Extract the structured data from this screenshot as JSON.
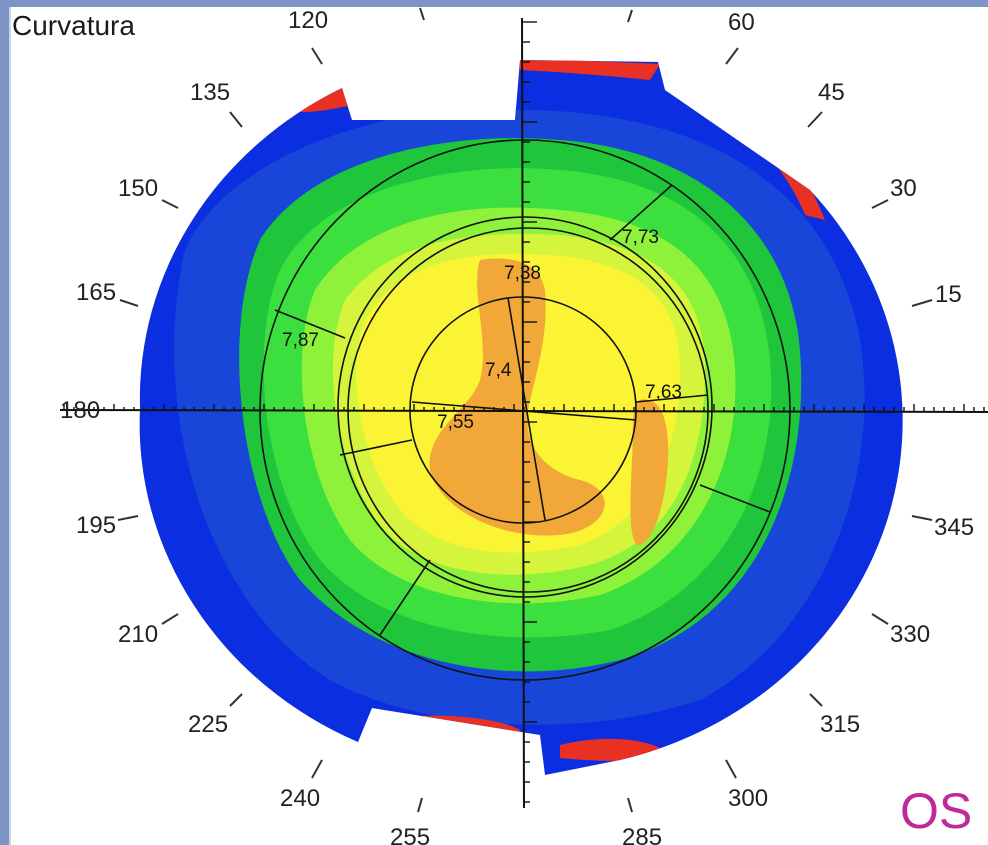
{
  "header": {
    "title": "Curvatura"
  },
  "eye_label": "OS",
  "angle_labels": [
    "120",
    "60",
    "135",
    "45",
    "150",
    "30",
    "165",
    "15",
    "180",
    "195",
    "345",
    "210",
    "330",
    "225",
    "315",
    "240",
    "300",
    "255",
    "285"
  ],
  "radius_labels": [
    "7,73",
    "7,38",
    "7,87",
    "7,4",
    "7,63",
    "7,55"
  ],
  "colors": {
    "outer": "#0a2ee0",
    "dark_blue": "#1846d8",
    "mid_green": "#1fc53a",
    "green": "#3be03e",
    "light_green": "#8ef23a",
    "yellow_green": "#d4f53b",
    "yellow": "#fbf435",
    "orange": "#f1a838",
    "red": "#e83123",
    "eye_label": "#c0299a"
  }
}
